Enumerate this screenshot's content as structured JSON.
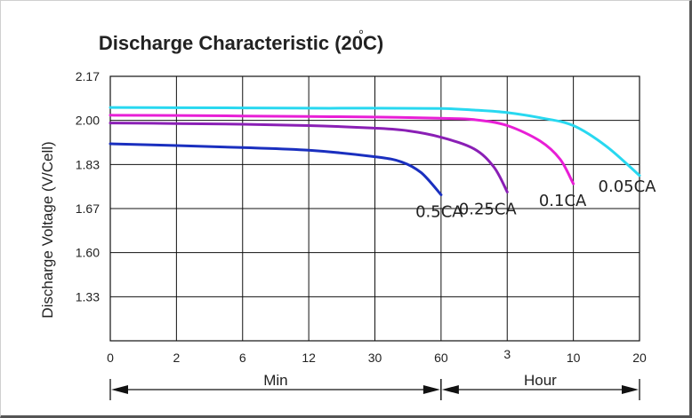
{
  "chart_data": {
    "type": "line",
    "title": "Discharge Characteristic (20",
    "title_degree_mark": "°",
    "title_tail": "C)",
    "ylabel": "Discharge Voltage (V/Cell)",
    "y_ticks": [
      "2.17",
      "2.00",
      "1.83",
      "1.67",
      "1.60",
      "1.33"
    ],
    "x_ticks": [
      "0",
      "2",
      "6",
      "12",
      "30",
      "60",
      "3",
      "10",
      "20"
    ],
    "x_ranges": [
      {
        "label": "Min",
        "from_tick": 0,
        "to_tick": 5
      },
      {
        "label": "Hour",
        "from_tick": 5,
        "to_tick": 8
      }
    ],
    "grid": true,
    "series": [
      {
        "name": "0.5CA",
        "color": "#1a2fbf",
        "x": [
          0,
          1,
          2,
          3,
          4,
          4.4,
          4.7,
          5
        ],
        "y": [
          1.91,
          1.903,
          1.895,
          1.885,
          1.86,
          1.84,
          1.8,
          1.72
        ]
      },
      {
        "name": "0.25CA",
        "color": "#8a1fb5",
        "x": [
          0,
          1,
          2,
          3,
          4,
          4.5,
          5,
          5.5,
          5.8,
          6
        ],
        "y": [
          1.99,
          1.988,
          1.985,
          1.98,
          1.97,
          1.96,
          1.935,
          1.89,
          1.82,
          1.73
        ]
      },
      {
        "name": "0.1CA",
        "color": "#e81ed6",
        "x": [
          0,
          1,
          2,
          3,
          4,
          5,
          5.5,
          6,
          6.5,
          6.8,
          7
        ],
        "y": [
          2.02,
          2.019,
          2.017,
          2.015,
          2.013,
          2.008,
          2.003,
          1.98,
          1.92,
          1.85,
          1.76
        ]
      },
      {
        "name": "0.05CA",
        "color": "#28d8f0",
        "x": [
          0,
          1,
          2,
          3,
          4,
          5,
          5.5,
          6,
          6.5,
          7,
          7.5,
          8
        ],
        "y": [
          2.05,
          2.049,
          2.048,
          2.047,
          2.047,
          2.046,
          2.04,
          2.03,
          2.01,
          1.98,
          1.9,
          1.79
        ]
      }
    ]
  }
}
